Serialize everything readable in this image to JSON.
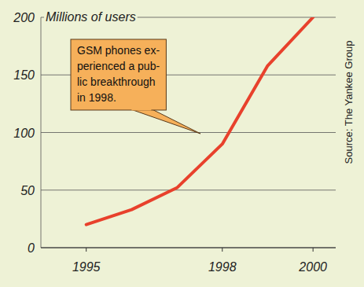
{
  "chart_data": {
    "type": "line",
    "y_label": "Millions of users",
    "annotation": [
      "GSM phones ex-",
      "perienced a pub-",
      "lic breakthrough",
      "in 1998."
    ],
    "source": "Source: The Yankee Group",
    "x": [
      1995,
      1996,
      1997,
      1998,
      1999,
      2000
    ],
    "values": [
      20,
      33,
      52,
      90,
      158,
      200
    ],
    "color": "#e8412c",
    "xlim": [
      1994,
      2000.5
    ],
    "xticks": [
      1995,
      1998,
      2000
    ],
    "ylim": [
      0,
      200
    ],
    "yticks": [
      0,
      50,
      100,
      150,
      200
    ],
    "grid": true
  }
}
